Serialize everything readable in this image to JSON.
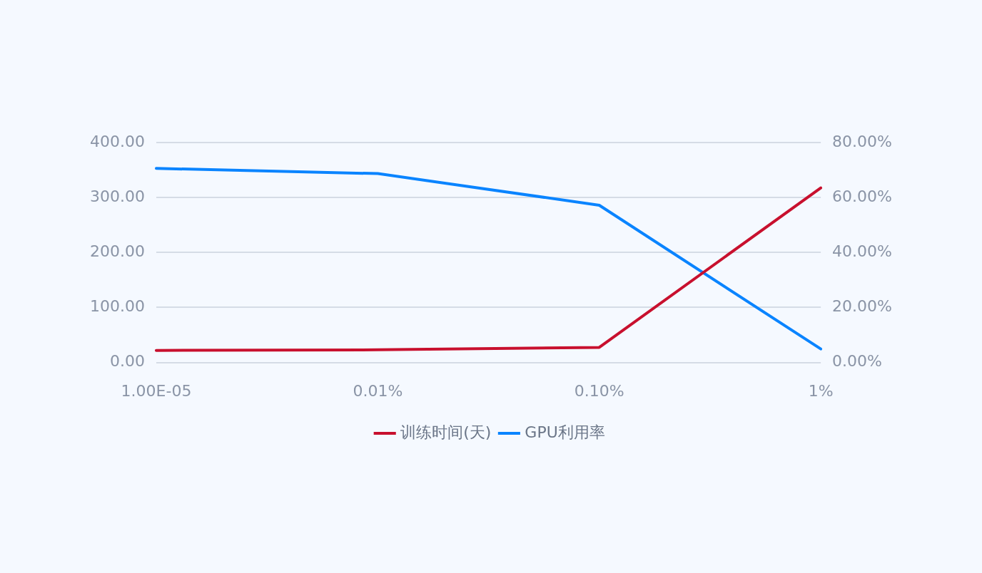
{
  "chart_data": {
    "type": "line",
    "categories": [
      "1.00E-05",
      "0.01%",
      "0.10%",
      "1%"
    ],
    "series": [
      {
        "name": "训练时间(天)",
        "color": "#c8102e",
        "values": [
          22,
          23,
          27.5,
          317.5
        ]
      },
      {
        "name": "GPU利用率",
        "color": "#0a84ff",
        "axis": "y2",
        "values": [
          70.6,
          68.7,
          57.2,
          4.9
        ]
      }
    ],
    "ylim": [
      0,
      400
    ],
    "yticks": [
      {
        "value": 0,
        "label": "0.00"
      },
      {
        "value": 100,
        "label": "100.00"
      },
      {
        "value": 200,
        "label": "200.00"
      },
      {
        "value": 300,
        "label": "300.00"
      },
      {
        "value": 400,
        "label": "400.00"
      }
    ],
    "y2lim": [
      0,
      80
    ],
    "y2ticks": [
      {
        "value": 0,
        "label": "0.00%"
      },
      {
        "value": 20,
        "label": "20.00%"
      },
      {
        "value": 40,
        "label": "40.00%"
      },
      {
        "value": 60,
        "label": "60.00%"
      },
      {
        "value": 80,
        "label": "80.00%"
      }
    ],
    "grid": "y",
    "legend": "bottom",
    "marker": "none",
    "line_style": "solid"
  }
}
